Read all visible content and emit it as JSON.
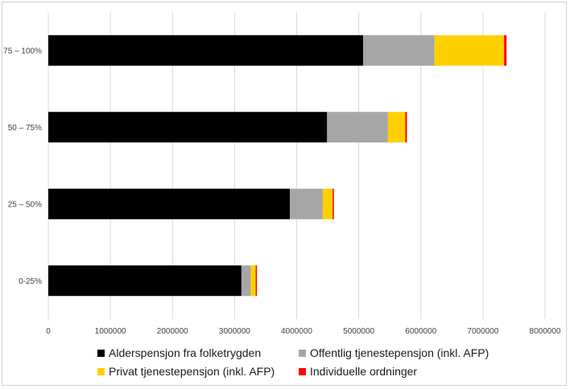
{
  "chart_data": {
    "type": "bar",
    "orientation": "horizontal",
    "stacked": true,
    "categories": [
      "75 – 100%",
      "50 – 75%",
      "25 – 50%",
      "0-25%"
    ],
    "series": [
      {
        "name": "Alderspensjon fra folketrygden",
        "color": "#000000",
        "values": [
          5070000,
          4490000,
          3890000,
          3110000
        ]
      },
      {
        "name": "Offentlig tjenestepensjon (inkl. AFP)",
        "color": "#a6a6a6",
        "values": [
          1150000,
          980000,
          530000,
          150000
        ]
      },
      {
        "name": "Privat tjenestepensjon (inkl. AFP)",
        "color": "#ffd000",
        "values": [
          1120000,
          280000,
          160000,
          80000
        ]
      },
      {
        "name": "Individuelle ordninger",
        "color": "#ff0000",
        "values": [
          40000,
          25000,
          20000,
          20000
        ]
      }
    ],
    "x_ticks": [
      "0",
      "1000000",
      "2000000",
      "3000000",
      "4000000",
      "5000000",
      "6000000",
      "7000000",
      "8000000"
    ],
    "xlim": [
      0,
      8000000
    ],
    "grid": "vertical",
    "legend_position": "bottom",
    "title": "",
    "xlabel": "",
    "ylabel": ""
  }
}
